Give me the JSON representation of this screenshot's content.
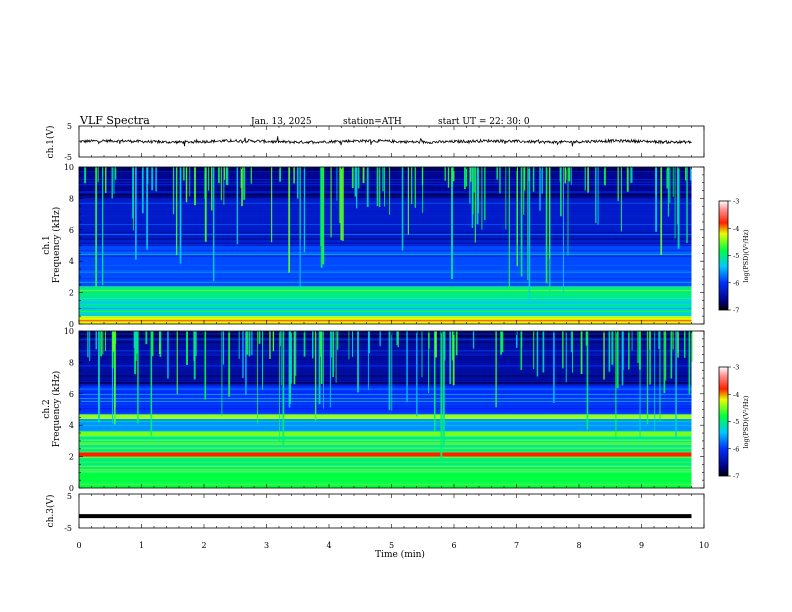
{
  "header": {
    "title": "VLF  Spectra",
    "date": "Jan. 13, 2025",
    "station": "station=ATH",
    "start": "start  UT  =    22: 30: 0"
  },
  "chart_data": [
    {
      "type": "line",
      "panel": "ch1-waveform",
      "ylabel": "ch.1(V)",
      "ylim": [
        -5,
        5
      ],
      "yticks": [
        "5",
        "-5"
      ],
      "xlim": [
        0,
        10
      ],
      "series": [
        {
          "values_description_range": [
            -1,
            1
          ]
        }
      ],
      "line_color": "#000000"
    },
    {
      "type": "heatmap",
      "panel": "ch1-spectrogram",
      "ylabel": "Frequency (kHz)",
      "channel_label": "ch.1",
      "ylim": [
        0,
        10
      ],
      "yticks": [
        "0",
        "2",
        "4",
        "6",
        "8",
        "10"
      ],
      "xlim": [
        0,
        10
      ],
      "data_end_min": 9.8,
      "colorbar": {
        "label": "log(PSD)(V²/Hz)",
        "range": [
          -7,
          -3
        ],
        "ticks": [
          "-3",
          "-4",
          "-5",
          "-6",
          "-7"
        ]
      },
      "bands": [
        {
          "f_low": 0.0,
          "f_high": 0.5,
          "level": -4.2
        },
        {
          "f_low": 0.5,
          "f_high": 1.6,
          "level": -5.3
        },
        {
          "f_low": 1.6,
          "f_high": 2.4,
          "level": -5.0
        },
        {
          "f_low": 2.4,
          "f_high": 5.0,
          "level": -5.9
        },
        {
          "f_low": 5.0,
          "f_high": 8.0,
          "level": -6.3
        },
        {
          "f_low": 8.0,
          "f_high": 10.0,
          "level": -6.6
        }
      ]
    },
    {
      "type": "heatmap",
      "panel": "ch2-spectrogram",
      "ylabel": "Frequency (kHz)",
      "channel_label": "ch.2",
      "ylim": [
        0,
        10
      ],
      "yticks": [
        "0",
        "2",
        "4",
        "6",
        "8",
        "10"
      ],
      "xlim": [
        0,
        10
      ],
      "data_end_min": 9.8,
      "colorbar": {
        "label": "log(PSD)(V²/Hz)",
        "range": [
          -7,
          -3
        ],
        "ticks": [
          "-3",
          "-4",
          "-5",
          "-6",
          "-7"
        ]
      },
      "bands": [
        {
          "f_low": 0.0,
          "f_high": 1.0,
          "level": -4.8
        },
        {
          "f_low": 1.0,
          "f_high": 2.0,
          "level": -5.0
        },
        {
          "f_low": 2.0,
          "f_high": 2.3,
          "level": -3.8
        },
        {
          "f_low": 2.3,
          "f_high": 3.3,
          "level": -5.0
        },
        {
          "f_low": 3.3,
          "f_high": 3.6,
          "level": -4.5
        },
        {
          "f_low": 3.6,
          "f_high": 4.4,
          "level": -5.6
        },
        {
          "f_low": 4.4,
          "f_high": 4.7,
          "level": -4.4
        },
        {
          "f_low": 4.7,
          "f_high": 6.5,
          "level": -6.0
        },
        {
          "f_low": 6.5,
          "f_high": 10.0,
          "level": -6.5
        }
      ]
    },
    {
      "type": "line",
      "panel": "ch3-waveform",
      "ylabel": "ch.3(V)",
      "ylim": [
        -5,
        5
      ],
      "yticks": [
        "5",
        "-5"
      ],
      "xlim": [
        0,
        10
      ],
      "series": [
        {
          "constant_value": -1.5
        }
      ],
      "line_color": "#000000"
    }
  ],
  "x_axis": {
    "label": "Time  (min)",
    "ticks": [
      "0",
      "1",
      "2",
      "3",
      "4",
      "5",
      "6",
      "7",
      "8",
      "9",
      "10"
    ]
  }
}
